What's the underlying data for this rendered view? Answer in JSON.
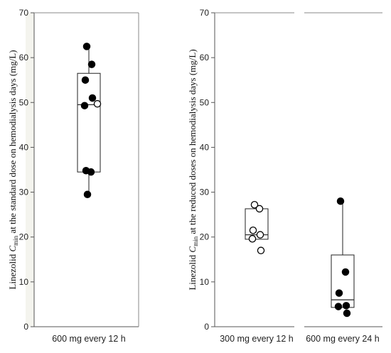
{
  "chart_data": [
    {
      "type": "box",
      "ylabel": {
        "pre": "Linezolid ",
        "var": "C",
        "sub": "min",
        "post": " at the standard dose on hemodialysis days (mg/L)"
      },
      "ylim": [
        0,
        70
      ],
      "yticks": [
        0,
        10,
        20,
        30,
        40,
        50,
        60,
        70
      ],
      "categories": [
        "600 mg every 12 h"
      ],
      "groups": [
        {
          "category": "600 mg every 12 h",
          "box": {
            "q1": 34.5,
            "median": 49.5,
            "q3": 56.5,
            "whisker_low": 29.5,
            "whisker_high": 62.5
          },
          "points": [
            {
              "y": 62.5,
              "filled": true
            },
            {
              "y": 58.5,
              "filled": true
            },
            {
              "y": 55.0,
              "filled": true
            },
            {
              "y": 51.0,
              "filled": true
            },
            {
              "y": 49.3,
              "filled": true
            },
            {
              "y": 49.7,
              "filled": false
            },
            {
              "y": 34.8,
              "filled": true
            },
            {
              "y": 34.5,
              "filled": true
            },
            {
              "y": 29.5,
              "filled": true
            }
          ]
        }
      ]
    },
    {
      "type": "box",
      "ylabel": {
        "pre": "Linezolid ",
        "var": "C",
        "sub": "min",
        "post": " at the reduced doses on hemodialysis days (mg/L)"
      },
      "ylim": [
        0,
        70
      ],
      "yticks": [
        0,
        10,
        20,
        30,
        40,
        50,
        60,
        70
      ],
      "categories": [
        "300 mg every 12 h",
        "600 mg every 24 h"
      ],
      "groups": [
        {
          "category": "300 mg every 12 h",
          "box": {
            "q1": 19.5,
            "median": 20.5,
            "q3": 26.3,
            "whisker_low": 19.5,
            "whisker_high": 26.3
          },
          "points": [
            {
              "y": 27.2,
              "filled": false
            },
            {
              "y": 26.3,
              "filled": false
            },
            {
              "y": 21.5,
              "filled": false
            },
            {
              "y": 20.5,
              "filled": false
            },
            {
              "y": 19.6,
              "filled": false
            },
            {
              "y": 17.0,
              "filled": false
            }
          ]
        },
        {
          "category": "600 mg every 24 h",
          "box": {
            "q1": 4.3,
            "median": 6.0,
            "q3": 16.0,
            "whisker_low": 4.3,
            "whisker_high": 28.0
          },
          "points": [
            {
              "y": 28.0,
              "filled": true
            },
            {
              "y": 12.2,
              "filled": true
            },
            {
              "y": 7.5,
              "filled": true
            },
            {
              "y": 4.7,
              "filled": true
            },
            {
              "y": 4.5,
              "filled": true
            },
            {
              "y": 3.0,
              "filled": true
            }
          ]
        }
      ]
    }
  ]
}
